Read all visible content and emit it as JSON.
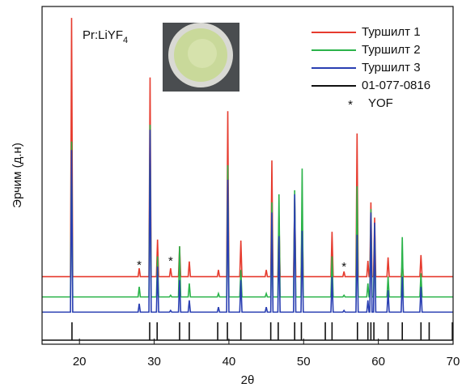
{
  "chart_data": {
    "type": "line",
    "x_label": "2θ",
    "y_label": "Эрчим (д.н)",
    "sample_label": {
      "text": "Pr:LiYF",
      "subscript": "4"
    },
    "xlim": [
      15,
      70
    ],
    "xticks": [
      20,
      30,
      40,
      50,
      60,
      70
    ],
    "ylim": [
      0,
      100
    ],
    "legend": "upper right",
    "x": [
      15,
      18.8,
      18.95,
      19.1,
      27.85,
      28.0,
      28.15,
      29.3,
      29.45,
      29.6,
      30.3,
      30.45,
      30.6,
      32.05,
      32.2,
      32.35,
      33.25,
      33.4,
      33.55,
      34.55,
      34.7,
      34.85,
      38.45,
      38.6,
      38.75,
      39.7,
      39.85,
      40.0,
      41.45,
      41.6,
      41.75,
      44.85,
      45.0,
      45.15,
      45.6,
      45.75,
      45.9,
      46.55,
      46.7,
      46.85,
      48.65,
      48.8,
      48.95,
      49.65,
      49.8,
      49.95,
      53.65,
      53.8,
      53.95,
      55.25,
      55.4,
      55.55,
      57.0,
      57.15,
      57.3,
      58.45,
      58.6,
      58.75,
      58.85,
      59.0,
      59.15,
      59.35,
      59.5,
      59.65,
      61.15,
      61.3,
      61.45,
      63.05,
      63.2,
      63.35,
      65.55,
      65.7,
      65.85,
      70
    ],
    "series": [
      {
        "name": "Туршилт 1",
        "color": "#e63b2e",
        "values": [
          20,
          20,
          96.6,
          20,
          20,
          22.5,
          20,
          20,
          79,
          20,
          20,
          31,
          20,
          20,
          22.5,
          20,
          20,
          29,
          20,
          20,
          24.5,
          20,
          20,
          22,
          20,
          20,
          69,
          20,
          20,
          30.7,
          20,
          20,
          22,
          20,
          20,
          54.4,
          20,
          20,
          38,
          20,
          20,
          43,
          20,
          20,
          38,
          20,
          20,
          33.3,
          20,
          20,
          21.5,
          20,
          20,
          62.4,
          20,
          20,
          24.7,
          20,
          20,
          42,
          20,
          20,
          37.5,
          20,
          20,
          25.7,
          20,
          20,
          24,
          20,
          20,
          26.4,
          20,
          20
        ]
      },
      {
        "name": "Туршилт 2",
        "color": "#2bb34a",
        "values": [
          14,
          14,
          60,
          14,
          14,
          17,
          14,
          14,
          65,
          14,
          14,
          26,
          14,
          14,
          14.5,
          14,
          14,
          29,
          14,
          14,
          18,
          14,
          14,
          15,
          14,
          14,
          53,
          14,
          14,
          22,
          14,
          14,
          15,
          14,
          14,
          42,
          14,
          14,
          44.4,
          14,
          14,
          45.6,
          14,
          14,
          52,
          14,
          14,
          26,
          14,
          14,
          14.5,
          14,
          14,
          46.8,
          14,
          14,
          18,
          14,
          14,
          40,
          14,
          14,
          35,
          14,
          14,
          20,
          14,
          14,
          31.7,
          14,
          14,
          21,
          14,
          14
        ]
      },
      {
        "name": "Туршилт 3",
        "color": "#2a3fb2",
        "values": [
          9.5,
          9.5,
          57.5,
          9.5,
          9.5,
          12,
          9.5,
          9.5,
          63.5,
          9.5,
          9.5,
          23,
          9.5,
          9.5,
          10,
          9.5,
          9.5,
          19,
          9.5,
          9.5,
          13,
          9.5,
          9.5,
          11,
          9.5,
          9.5,
          48.7,
          9.5,
          9.5,
          19,
          9.5,
          9.5,
          11,
          9.5,
          9.5,
          39,
          9.5,
          9.5,
          32,
          9.5,
          9.5,
          44.4,
          9.5,
          9.5,
          33.6,
          9.5,
          9.5,
          20,
          9.5,
          9.5,
          10,
          9.5,
          9.5,
          32.4,
          9.5,
          9.5,
          13,
          9.5,
          9.5,
          39,
          9.5,
          9.5,
          36,
          9.5,
          9.5,
          16,
          9.5,
          9.5,
          20,
          9.5,
          9.5,
          17,
          9.5,
          9.5
        ]
      },
      {
        "name": "01-077-0816",
        "color": "#111111",
        "style": "stick",
        "x": [
          19,
          29.4,
          30.4,
          33.4,
          34.7,
          38.5,
          39.8,
          41.6,
          45.6,
          46.6,
          48.8,
          49.7,
          52.9,
          53.8,
          57.2,
          58.6,
          59.0,
          59.4,
          61.3,
          63.2,
          65.7,
          66.8,
          69.9
        ],
        "values": [
          6.5,
          6.5,
          6.5,
          6.5,
          6.5,
          6.5,
          6.5,
          6.5,
          6.5,
          6.5,
          6.5,
          6.5,
          6.5,
          6.5,
          6.5,
          6.5,
          6.5,
          6.5,
          6.5,
          6.5,
          6.5,
          6.5,
          6.5
        ]
      }
    ],
    "marker_legend": {
      "symbol": "*",
      "label": "YOF"
    },
    "annotations": [
      {
        "text": "*",
        "x": 28.0,
        "y": 23.3
      },
      {
        "text": "*",
        "x": 32.2,
        "y": 24.5
      },
      {
        "text": "*",
        "x": 55.4,
        "y": 22.8
      }
    ]
  }
}
